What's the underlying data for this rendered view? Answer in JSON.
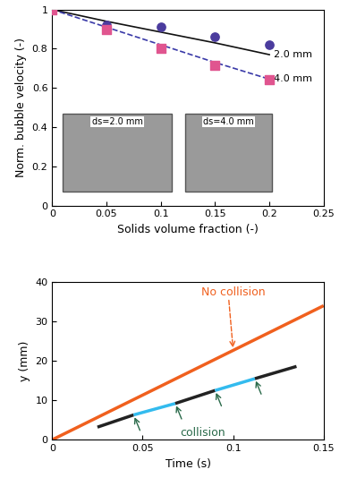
{
  "chart_data": [
    {
      "type": "scatter",
      "x_label": "Solids volume fraction (-)",
      "y_label": "Norm. bubble velocity (-)",
      "xlim": [
        0,
        0.25
      ],
      "xticks": [
        0,
        0.05,
        0.1,
        0.15,
        0.2,
        0.25
      ],
      "ylim": [
        0,
        1
      ],
      "yticks": [
        0,
        0.2,
        0.4,
        0.6,
        0.8,
        1
      ],
      "series": [
        {
          "type": "line",
          "name": "2.0 mm",
          "color": "#111111",
          "line_style": "solid",
          "x": [
            0,
            0.05,
            0.1,
            0.15,
            0.2
          ],
          "values": [
            1.0,
            0.94,
            0.885,
            0.83,
            0.77
          ]
        },
        {
          "type": "line",
          "name": "4.0 mm",
          "color": "#3a3aa8",
          "line_style": "dashed",
          "x": [
            0,
            0.05,
            0.1,
            0.15,
            0.2
          ],
          "values": [
            1.0,
            0.91,
            0.82,
            0.73,
            0.645
          ]
        },
        {
          "type": "scatter",
          "marker": "o",
          "color": "#4b3c9e",
          "x": [
            0,
            0.05,
            0.1,
            0.15,
            0.2
          ],
          "values": [
            1.0,
            0.92,
            0.91,
            0.86,
            0.82
          ]
        },
        {
          "type": "scatter",
          "marker": "s",
          "color": "#e0558f",
          "x": [
            0,
            0.05,
            0.1,
            0.15,
            0.2
          ],
          "values": [
            1.0,
            0.9,
            0.8,
            0.715,
            0.64
          ]
        }
      ],
      "annotations": [
        {
          "text": "ds=2.0 mm"
        },
        {
          "text": "ds=4.0 mm"
        }
      ]
    },
    {
      "type": "line",
      "x_label": "Time (s)",
      "y_label": "y (mm)",
      "xlim": [
        0,
        0.15
      ],
      "xticks": [
        0,
        0.05,
        0.1,
        0.15
      ],
      "ylim": [
        0,
        40
      ],
      "yticks": [
        0,
        10,
        20,
        30,
        40
      ],
      "series": [
        {
          "color": "#f0601e",
          "x": [
            0,
            0.15
          ],
          "values": [
            0,
            34
          ]
        },
        {
          "color": "#222222",
          "x": [
            0.025,
            0.045
          ],
          "values": [
            3.2,
            6.3
          ]
        },
        {
          "color": "#33bbee",
          "x": [
            0.045,
            0.068
          ],
          "values": [
            6.3,
            9.2
          ]
        },
        {
          "color": "#222222",
          "x": [
            0.068,
            0.09
          ],
          "values": [
            9.2,
            12.5
          ]
        },
        {
          "color": "#33bbee",
          "x": [
            0.09,
            0.112
          ],
          "values": [
            12.5,
            15.5
          ]
        },
        {
          "color": "#222222",
          "x": [
            0.112,
            0.135
          ],
          "values": [
            15.5,
            18.6
          ]
        }
      ],
      "annotations": [
        {
          "text": "No collision",
          "color": "#f0601e",
          "points": [
            [
              0.1,
              22.7
            ]
          ]
        },
        {
          "text": "collision",
          "color": "#2a6a4a",
          "points": [
            [
              0.045,
              6.3
            ],
            [
              0.068,
              9.2
            ],
            [
              0.09,
              12.5
            ],
            [
              0.112,
              15.5
            ]
          ]
        }
      ]
    }
  ]
}
